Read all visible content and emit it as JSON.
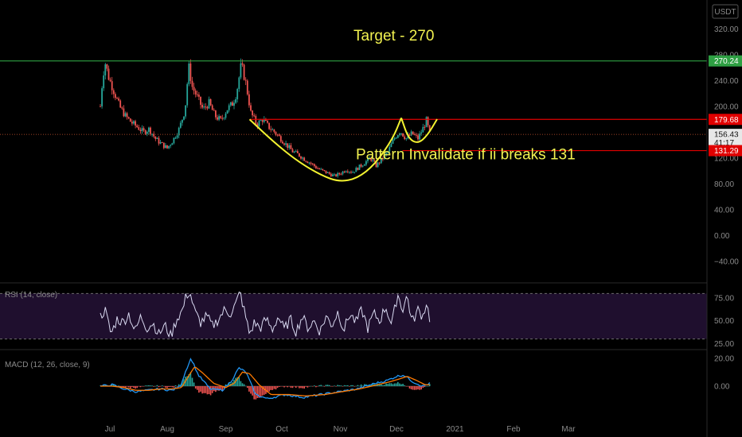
{
  "currency": "USDT",
  "chart_data": {
    "type": "candlestick",
    "x_ticks": [
      "Jul",
      "Aug",
      "Sep",
      "Oct",
      "Nov",
      "Dec",
      "2021",
      "Feb",
      "Mar"
    ],
    "price": {
      "y_ticks": [
        "320.00",
        "280.00",
        "240.00",
        "200.00",
        "160.00",
        "120.00",
        "80.00",
        "40.00",
        "0.00",
        "−40.00"
      ],
      "y_tick_values": [
        320,
        280,
        240,
        200,
        160,
        120,
        80,
        40,
        0,
        -40
      ],
      "ylim": [
        -60,
        340
      ],
      "ohlc_path": [
        {
          "x": 0.0,
          "y": 200
        },
        {
          "x": 0.2,
          "y": 245
        },
        {
          "x": 0.4,
          "y": 268
        },
        {
          "x": 0.7,
          "y": 245
        },
        {
          "x": 1.1,
          "y": 225
        },
        {
          "x": 1.6,
          "y": 200
        },
        {
          "x": 2.1,
          "y": 185
        },
        {
          "x": 2.6,
          "y": 175
        },
        {
          "x": 3.1,
          "y": 168
        },
        {
          "x": 3.6,
          "y": 160
        },
        {
          "x": 4.1,
          "y": 165
        },
        {
          "x": 4.6,
          "y": 150
        },
        {
          "x": 5.1,
          "y": 142
        },
        {
          "x": 5.6,
          "y": 135
        },
        {
          "x": 6.1,
          "y": 148
        },
        {
          "x": 6.6,
          "y": 165
        },
        {
          "x": 7.1,
          "y": 195
        },
        {
          "x": 7.4,
          "y": 262
        },
        {
          "x": 7.7,
          "y": 230
        },
        {
          "x": 8.1,
          "y": 215
        },
        {
          "x": 8.6,
          "y": 195
        },
        {
          "x": 9.1,
          "y": 205
        },
        {
          "x": 9.6,
          "y": 185
        },
        {
          "x": 10.1,
          "y": 178
        },
        {
          "x": 10.6,
          "y": 195
        },
        {
          "x": 11.1,
          "y": 205
        },
        {
          "x": 11.4,
          "y": 220
        },
        {
          "x": 11.8,
          "y": 265
        },
        {
          "x": 12.2,
          "y": 235
        },
        {
          "x": 12.6,
          "y": 190
        },
        {
          "x": 13.1,
          "y": 172
        },
        {
          "x": 13.6,
          "y": 180
        },
        {
          "x": 14.1,
          "y": 168
        },
        {
          "x": 14.6,
          "y": 160
        },
        {
          "x": 15.1,
          "y": 150
        },
        {
          "x": 15.6,
          "y": 140
        },
        {
          "x": 16.1,
          "y": 130
        },
        {
          "x": 16.6,
          "y": 125
        },
        {
          "x": 17.1,
          "y": 118
        },
        {
          "x": 17.6,
          "y": 112
        },
        {
          "x": 18.1,
          "y": 105
        },
        {
          "x": 18.6,
          "y": 100
        },
        {
          "x": 19.1,
          "y": 96
        },
        {
          "x": 19.6,
          "y": 92
        },
        {
          "x": 20.1,
          "y": 96
        },
        {
          "x": 20.6,
          "y": 102
        },
        {
          "x": 21.1,
          "y": 98
        },
        {
          "x": 21.6,
          "y": 105
        },
        {
          "x": 22.1,
          "y": 112
        },
        {
          "x": 22.6,
          "y": 120
        },
        {
          "x": 23.1,
          "y": 108
        },
        {
          "x": 23.6,
          "y": 118
        },
        {
          "x": 24.1,
          "y": 130
        },
        {
          "x": 24.6,
          "y": 150
        },
        {
          "x": 25.1,
          "y": 162
        },
        {
          "x": 25.6,
          "y": 150
        },
        {
          "x": 26.1,
          "y": 158
        },
        {
          "x": 26.6,
          "y": 150
        },
        {
          "x": 27.0,
          "y": 165
        },
        {
          "x": 27.3,
          "y": 178
        },
        {
          "x": 27.6,
          "y": 156
        }
      ],
      "hlines": [
        {
          "value": 270.24,
          "color": "#2ea043"
        },
        {
          "value": 179.68,
          "color": "#e00000"
        },
        {
          "value": 131.29,
          "color": "#e00000"
        },
        {
          "value": 156.43,
          "color": "#d05a30",
          "dotted": true
        }
      ],
      "price_tags": [
        {
          "value": 270.24,
          "label": "270.24",
          "bg": "#2ea043",
          "fg": "#ffffff"
        },
        {
          "value": 179.68,
          "label": "179.68",
          "bg": "#e00000",
          "fg": "#ffffff"
        },
        {
          "value": 156.43,
          "label": "156.43",
          "bg": "#e8e8e8",
          "fg": "#111111"
        },
        {
          "value": 144.0,
          "label": "41:17",
          "bg": "#e8e8e8",
          "fg": "#111111"
        },
        {
          "value": 131.29,
          "label": "131.29",
          "bg": "#e00000",
          "fg": "#ffffff"
        }
      ],
      "annotations": [
        {
          "text": "Target - 270",
          "x": 21.2,
          "y": 302
        },
        {
          "text": "Pattern Invalidate if ii breaks 131",
          "x": 21.4,
          "y": 118
        }
      ],
      "cup_curve": [
        {
          "x": 12.5,
          "y": 179.68
        },
        {
          "x": 14.5,
          "y": 145
        },
        {
          "x": 16.5,
          "y": 115
        },
        {
          "x": 18.5,
          "y": 93
        },
        {
          "x": 20.0,
          "y": 83
        },
        {
          "x": 21.5,
          "y": 88
        },
        {
          "x": 23.0,
          "y": 110
        },
        {
          "x": 24.5,
          "y": 150
        },
        {
          "x": 25.2,
          "y": 182
        }
      ],
      "handle_curve": [
        {
          "x": 25.2,
          "y": 182
        },
        {
          "x": 25.8,
          "y": 150
        },
        {
          "x": 26.6,
          "y": 142
        },
        {
          "x": 27.4,
          "y": 155
        },
        {
          "x": 28.2,
          "y": 180
        }
      ]
    },
    "rsi": {
      "title": "RSI (14, close)",
      "y_ticks": [
        "75.00",
        "50.00",
        "25.00"
      ],
      "y_tick_values": [
        75,
        50,
        25
      ],
      "ylim": [
        20,
        90
      ],
      "band": [
        30,
        80
      ],
      "path": [
        {
          "x": 0.0,
          "y": 55
        },
        {
          "x": 0.4,
          "y": 62
        },
        {
          "x": 0.9,
          "y": 35
        },
        {
          "x": 1.4,
          "y": 52
        },
        {
          "x": 1.9,
          "y": 48
        },
        {
          "x": 2.4,
          "y": 58
        },
        {
          "x": 2.9,
          "y": 38
        },
        {
          "x": 3.4,
          "y": 55
        },
        {
          "x": 3.9,
          "y": 42
        },
        {
          "x": 4.4,
          "y": 48
        },
        {
          "x": 4.9,
          "y": 35
        },
        {
          "x": 5.4,
          "y": 45
        },
        {
          "x": 5.9,
          "y": 33
        },
        {
          "x": 6.4,
          "y": 52
        },
        {
          "x": 6.9,
          "y": 62
        },
        {
          "x": 7.2,
          "y": 78
        },
        {
          "x": 7.5,
          "y": 82
        },
        {
          "x": 7.9,
          "y": 60
        },
        {
          "x": 8.4,
          "y": 48
        },
        {
          "x": 8.9,
          "y": 55
        },
        {
          "x": 9.4,
          "y": 44
        },
        {
          "x": 9.9,
          "y": 52
        },
        {
          "x": 10.4,
          "y": 62
        },
        {
          "x": 10.9,
          "y": 58
        },
        {
          "x": 11.4,
          "y": 70
        },
        {
          "x": 11.7,
          "y": 82
        },
        {
          "x": 12.1,
          "y": 58
        },
        {
          "x": 12.5,
          "y": 35
        },
        {
          "x": 12.9,
          "y": 48
        },
        {
          "x": 13.4,
          "y": 42
        },
        {
          "x": 13.9,
          "y": 52
        },
        {
          "x": 14.4,
          "y": 40
        },
        {
          "x": 14.9,
          "y": 55
        },
        {
          "x": 15.4,
          "y": 40
        },
        {
          "x": 15.9,
          "y": 52
        },
        {
          "x": 16.4,
          "y": 38
        },
        {
          "x": 16.9,
          "y": 55
        },
        {
          "x": 17.4,
          "y": 42
        },
        {
          "x": 17.9,
          "y": 50
        },
        {
          "x": 18.4,
          "y": 38
        },
        {
          "x": 18.9,
          "y": 55
        },
        {
          "x": 19.4,
          "y": 45
        },
        {
          "x": 19.9,
          "y": 60
        },
        {
          "x": 20.4,
          "y": 40
        },
        {
          "x": 20.9,
          "y": 58
        },
        {
          "x": 21.4,
          "y": 48
        },
        {
          "x": 21.9,
          "y": 62
        },
        {
          "x": 22.4,
          "y": 42
        },
        {
          "x": 22.9,
          "y": 58
        },
        {
          "x": 23.4,
          "y": 50
        },
        {
          "x": 23.9,
          "y": 66
        },
        {
          "x": 24.4,
          "y": 45
        },
        {
          "x": 24.9,
          "y": 80
        },
        {
          "x": 25.3,
          "y": 62
        },
        {
          "x": 25.7,
          "y": 78
        },
        {
          "x": 26.1,
          "y": 48
        },
        {
          "x": 26.6,
          "y": 62
        },
        {
          "x": 27.0,
          "y": 55
        },
        {
          "x": 27.3,
          "y": 70
        },
        {
          "x": 27.6,
          "y": 52
        }
      ]
    },
    "macd": {
      "title": "MACD (12, 26, close, 9)",
      "y_ticks": [
        "20.00",
        "0.00"
      ],
      "y_tick_values": [
        20,
        0
      ],
      "ylim": [
        -25,
        25
      ],
      "macd_line": [
        {
          "x": 0.0,
          "y": 0
        },
        {
          "x": 1.0,
          "y": 1
        },
        {
          "x": 2.0,
          "y": -2
        },
        {
          "x": 3.0,
          "y": -4
        },
        {
          "x": 4.0,
          "y": -3
        },
        {
          "x": 5.0,
          "y": -2
        },
        {
          "x": 6.0,
          "y": -3
        },
        {
          "x": 6.7,
          "y": 0
        },
        {
          "x": 7.2,
          "y": 12
        },
        {
          "x": 7.6,
          "y": 20
        },
        {
          "x": 8.2,
          "y": 8
        },
        {
          "x": 9.2,
          "y": -2
        },
        {
          "x": 10.2,
          "y": -3
        },
        {
          "x": 11.0,
          "y": 4
        },
        {
          "x": 11.6,
          "y": 13
        },
        {
          "x": 12.2,
          "y": 10
        },
        {
          "x": 13.0,
          "y": -6
        },
        {
          "x": 14.0,
          "y": -9
        },
        {
          "x": 15.5,
          "y": -6
        },
        {
          "x": 17.0,
          "y": -8
        },
        {
          "x": 18.5,
          "y": -6
        },
        {
          "x": 20.0,
          "y": -4
        },
        {
          "x": 21.5,
          "y": -2
        },
        {
          "x": 23.0,
          "y": 2
        },
        {
          "x": 24.0,
          "y": 4
        },
        {
          "x": 24.8,
          "y": 7
        },
        {
          "x": 25.4,
          "y": 8
        },
        {
          "x": 26.2,
          "y": 3
        },
        {
          "x": 27.0,
          "y": 0
        },
        {
          "x": 27.6,
          "y": 2
        }
      ],
      "signal_line": [
        {
          "x": 0.0,
          "y": 0
        },
        {
          "x": 1.0,
          "y": 0
        },
        {
          "x": 2.0,
          "y": -1
        },
        {
          "x": 3.0,
          "y": -3
        },
        {
          "x": 4.0,
          "y": -3
        },
        {
          "x": 5.0,
          "y": -2
        },
        {
          "x": 6.0,
          "y": -2
        },
        {
          "x": 6.8,
          "y": -1
        },
        {
          "x": 7.3,
          "y": 6
        },
        {
          "x": 7.9,
          "y": 14
        },
        {
          "x": 8.5,
          "y": 10
        },
        {
          "x": 9.5,
          "y": 2
        },
        {
          "x": 10.5,
          "y": -1
        },
        {
          "x": 11.2,
          "y": 2
        },
        {
          "x": 11.9,
          "y": 10
        },
        {
          "x": 12.5,
          "y": 9
        },
        {
          "x": 13.3,
          "y": 1
        },
        {
          "x": 14.3,
          "y": -6
        },
        {
          "x": 15.8,
          "y": -6
        },
        {
          "x": 17.2,
          "y": -7
        },
        {
          "x": 18.8,
          "y": -6
        },
        {
          "x": 20.2,
          "y": -4
        },
        {
          "x": 21.7,
          "y": -2
        },
        {
          "x": 23.2,
          "y": 1
        },
        {
          "x": 24.2,
          "y": 3
        },
        {
          "x": 25.0,
          "y": 5
        },
        {
          "x": 25.7,
          "y": 7
        },
        {
          "x": 26.5,
          "y": 4
        },
        {
          "x": 27.2,
          "y": 1
        },
        {
          "x": 27.6,
          "y": 1
        }
      ]
    }
  }
}
